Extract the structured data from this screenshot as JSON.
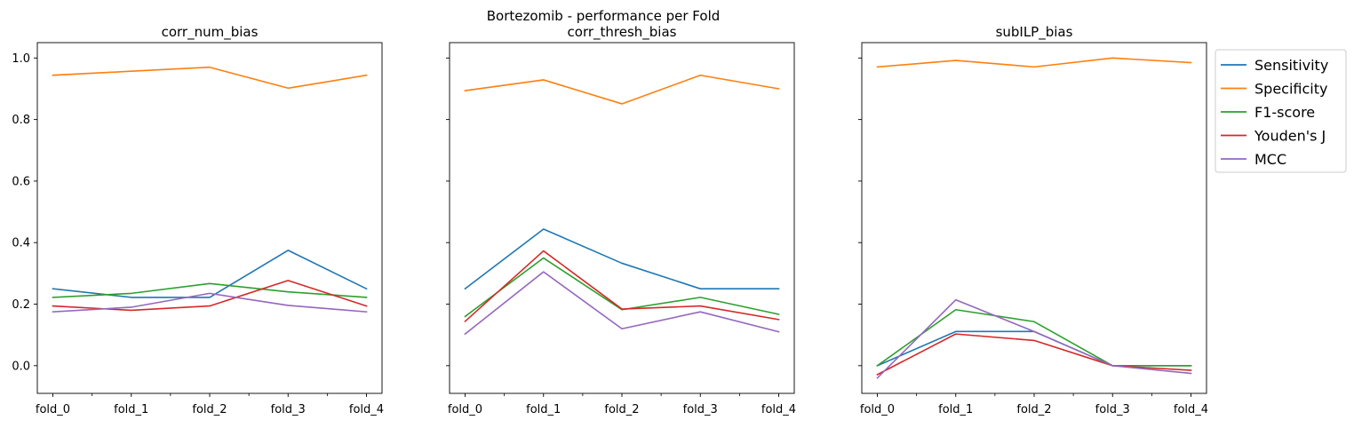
{
  "figure": {
    "suptitle": "Bortezomib - performance per Fold"
  },
  "legend": {
    "placement": "outside-right-upper"
  },
  "chart_data": [
    {
      "type": "line",
      "title": "corr_num_bias",
      "categories": [
        "fold_0",
        "fold_1",
        "fold_2",
        "fold_3",
        "fold_4"
      ],
      "ylim": [
        -0.09,
        1.05
      ],
      "yticks": [
        "0.0",
        "0.2",
        "0.4",
        "0.6",
        "0.8",
        "1.0"
      ],
      "grid": false,
      "series": [
        {
          "name": "Sensitivity",
          "color": "#1f77b4",
          "values": [
            0.25,
            0.222,
            0.222,
            0.375,
            0.25
          ]
        },
        {
          "name": "Specificity",
          "color": "#ff7f0e",
          "values": [
            0.944,
            0.957,
            0.97,
            0.902,
            0.944
          ]
        },
        {
          "name": "F1-score",
          "color": "#2ca02c",
          "values": [
            0.222,
            0.235,
            0.267,
            0.24,
            0.222
          ]
        },
        {
          "name": "Youden's J",
          "color": "#d62728",
          "values": [
            0.194,
            0.18,
            0.194,
            0.277,
            0.194
          ]
        },
        {
          "name": "MCC",
          "color": "#9467bd",
          "values": [
            0.175,
            0.19,
            0.235,
            0.196,
            0.175
          ]
        }
      ]
    },
    {
      "type": "line",
      "title": "corr_thresh_bias",
      "categories": [
        "fold_0",
        "fold_1",
        "fold_2",
        "fold_3",
        "fold_4"
      ],
      "ylim": [
        -0.09,
        1.05
      ],
      "yticks": [
        "",
        "",
        "",
        "",
        "",
        ""
      ],
      "grid": false,
      "series": [
        {
          "name": "Sensitivity",
          "color": "#1f77b4",
          "values": [
            0.25,
            0.444,
            0.333,
            0.25,
            0.25
          ]
        },
        {
          "name": "Specificity",
          "color": "#ff7f0e",
          "values": [
            0.894,
            0.929,
            0.851,
            0.944,
            0.9
          ]
        },
        {
          "name": "F1-score",
          "color": "#2ca02c",
          "values": [
            0.16,
            0.35,
            0.182,
            0.222,
            0.167
          ]
        },
        {
          "name": "Youden's J",
          "color": "#d62728",
          "values": [
            0.144,
            0.373,
            0.184,
            0.194,
            0.15
          ]
        },
        {
          "name": "MCC",
          "color": "#9467bd",
          "values": [
            0.103,
            0.305,
            0.12,
            0.175,
            0.11
          ]
        }
      ]
    },
    {
      "type": "line",
      "title": "subILP_bias",
      "categories": [
        "fold_0",
        "fold_1",
        "fold_2",
        "fold_3",
        "fold_4"
      ],
      "ylim": [
        -0.09,
        1.05
      ],
      "yticks": [
        "",
        "",
        "",
        "",
        "",
        ""
      ],
      "grid": false,
      "series": [
        {
          "name": "Sensitivity",
          "color": "#1f77b4",
          "values": [
            0.0,
            0.111,
            0.111,
            0.0,
            0.0
          ]
        },
        {
          "name": "Specificity",
          "color": "#ff7f0e",
          "values": [
            0.971,
            0.992,
            0.971,
            1.0,
            0.985
          ]
        },
        {
          "name": "F1-score",
          "color": "#2ca02c",
          "values": [
            0.0,
            0.182,
            0.143,
            0.0,
            0.0
          ]
        },
        {
          "name": "Youden's J",
          "color": "#d62728",
          "values": [
            -0.029,
            0.103,
            0.082,
            0.0,
            -0.015
          ]
        },
        {
          "name": "MCC",
          "color": "#9467bd",
          "values": [
            -0.04,
            0.214,
            0.111,
            0.0,
            -0.025
          ]
        }
      ]
    }
  ]
}
